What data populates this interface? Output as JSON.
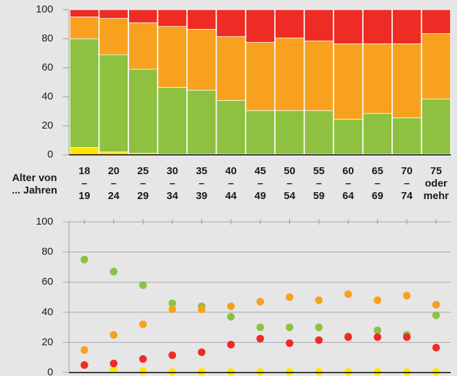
{
  "chart_data": [
    {
      "type": "stacked_bar",
      "x_label": "Alter von\n... Jahren",
      "categories": [
        "18\n–\n19",
        "20\n–\n24",
        "25\n–\n29",
        "30\n–\n34",
        "35\n–\n39",
        "40\n–\n44",
        "45\n–\n49",
        "50\n–\n54",
        "55\n–\n59",
        "60\n–\n64",
        "65\n–\n69",
        "70\n–\n74",
        "75\noder\nmehr"
      ],
      "series": [
        {
          "color": "#ffe500",
          "values": [
            5,
            2,
            1,
            0.5,
            0.5,
            0.5,
            0.5,
            0.5,
            0.5,
            0.5,
            0.5,
            0.5,
            0.5
          ]
        },
        {
          "color": "#8dc13f",
          "values": [
            75,
            67,
            58,
            46,
            44,
            37,
            30,
            30,
            30,
            24,
            28,
            25,
            38
          ]
        },
        {
          "color": "#f7a11e",
          "values": [
            15,
            25,
            32,
            42,
            42,
            44,
            47,
            50,
            48,
            52,
            48,
            51,
            45
          ]
        },
        {
          "color": "#ee2b25",
          "values": [
            5,
            6,
            9,
            11.5,
            13.5,
            18.5,
            22.5,
            19.5,
            21.5,
            23.5,
            23.5,
            23.5,
            16.5
          ]
        }
      ],
      "ylim": [
        0,
        100
      ],
      "yticks": [
        0,
        20,
        40,
        60,
        80,
        100
      ]
    },
    {
      "type": "dot",
      "series": [
        {
          "color": "#ffe500",
          "values": [
            5,
            2,
            1,
            0.5,
            0.5,
            0.5,
            0.5,
            0.5,
            0.5,
            0.5,
            0.5,
            0.5,
            0.5
          ]
        },
        {
          "color": "#8dc13f",
          "values": [
            75,
            67,
            58,
            46,
            44,
            37,
            30,
            30,
            30,
            24,
            28,
            25,
            38
          ]
        },
        {
          "color": "#f7a11e",
          "values": [
            15,
            25,
            32,
            42,
            42,
            44,
            47,
            50,
            48,
            52,
            48,
            51,
            45
          ]
        },
        {
          "color": "#ee2b25",
          "values": [
            5,
            6,
            9,
            11.5,
            13.5,
            18.5,
            22.5,
            19.5,
            21.5,
            23.5,
            23.5,
            23.5,
            16.5
          ]
        }
      ],
      "ylim": [
        0,
        100
      ],
      "yticks": [
        0,
        20,
        40,
        60,
        80,
        100
      ],
      "grid": true
    }
  ]
}
